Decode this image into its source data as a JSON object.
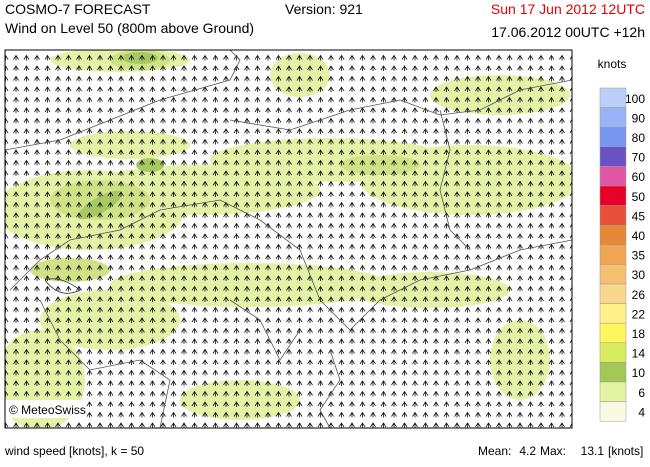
{
  "header": {
    "title": "COSMO-7 FORECAST",
    "subtitle": "Wind on Level 50 (800m above Ground)",
    "version": "Version: 921",
    "valid_time": "Sun 17 Jun 2012 12UTC",
    "run": "17.06.2012 00UTC +12h"
  },
  "credit": "© MeteoSwiss",
  "legend": {
    "unit": "knots",
    "levels": [
      {
        "value": 100,
        "color": "#b9cffa"
      },
      {
        "value": 90,
        "color": "#98b4f7"
      },
      {
        "value": 80,
        "color": "#7896f0"
      },
      {
        "value": 70,
        "color": "#6a52c4"
      },
      {
        "value": 60,
        "color": "#e055a4"
      },
      {
        "value": 50,
        "color": "#e8002a"
      },
      {
        "value": 45,
        "color": "#e8503a"
      },
      {
        "value": 40,
        "color": "#e5883a"
      },
      {
        "value": 35,
        "color": "#f0a552"
      },
      {
        "value": 30,
        "color": "#f5c070"
      },
      {
        "value": 26,
        "color": "#f9d88e"
      },
      {
        "value": 22,
        "color": "#fff08a"
      },
      {
        "value": 18,
        "color": "#fff55c"
      },
      {
        "value": 14,
        "color": "#d8ee5e"
      },
      {
        "value": 10,
        "color": "#a3c855"
      },
      {
        "value": 6,
        "color": "#e4f4a2"
      },
      {
        "value": 4,
        "color": "#fafae4"
      }
    ]
  },
  "footer": {
    "description": "wind speed [knots], k = 50",
    "mean_label": "Mean:",
    "mean": 4.2,
    "max_label": "Max:",
    "max": 13.1,
    "unit": "[knots]"
  }
}
